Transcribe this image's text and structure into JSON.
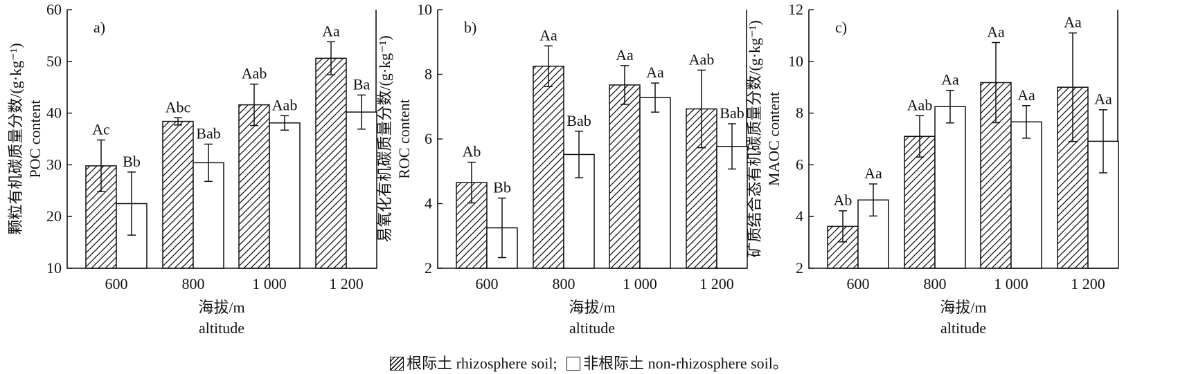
{
  "chart_data": [
    {
      "type": "bar",
      "panel_label": "a)",
      "ylabel_cn": "颗粒有机碳质量分数/(g·kg⁻¹)",
      "ylabel_en": "POC content",
      "xlabel_cn": "海拔/m",
      "xlabel_en": "altitude",
      "categories": [
        "600",
        "800",
        "1 000",
        "1 200"
      ],
      "ylim": [
        10,
        60
      ],
      "yticks": [
        "10",
        "20",
        "30",
        "40",
        "50",
        "60"
      ],
      "series": [
        {
          "name": "根际土 rhizosphere soil",
          "values": [
            29.8,
            38.4,
            41.6,
            50.6
          ],
          "errors": [
            5.0,
            0.7,
            4.0,
            3.2
          ],
          "labels": [
            "Ac",
            "Abc",
            "Aab",
            "Aa"
          ]
        },
        {
          "name": "非根际土 non-rhizosphere soil",
          "values": [
            22.5,
            30.4,
            38.1,
            40.2
          ],
          "errors": [
            6.1,
            3.6,
            1.4,
            3.3
          ],
          "labels": [
            "Bb",
            "Bab",
            "Aab",
            "Ba"
          ]
        }
      ]
    },
    {
      "type": "bar",
      "panel_label": "b)",
      "ylabel_cn": "易氧化有机碳质量分数/(g·kg⁻¹)",
      "ylabel_en": "ROC content",
      "xlabel_cn": "海拔/m",
      "xlabel_en": "altitude",
      "categories": [
        "600",
        "800",
        "1 000",
        "1 200"
      ],
      "ylim": [
        2,
        10
      ],
      "yticks": [
        "2",
        "4",
        "6",
        "8",
        "10"
      ],
      "series": [
        {
          "name": "根际土 rhizosphere soil",
          "values": [
            4.65,
            8.25,
            7.67,
            6.93
          ],
          "errors": [
            0.63,
            0.63,
            0.6,
            1.2
          ],
          "labels": [
            "Ab",
            "Aa",
            "Aa",
            "Aab"
          ]
        },
        {
          "name": "非根际土 non-rhizosphere soil",
          "values": [
            3.25,
            5.52,
            7.28,
            5.77
          ],
          "errors": [
            0.92,
            0.72,
            0.45,
            0.7
          ],
          "labels": [
            "Bb",
            "Bab",
            "Aa",
            "Bab"
          ]
        }
      ]
    },
    {
      "type": "bar",
      "panel_label": "c)",
      "ylabel_cn": "矿质结合态有机碳质量分数/(g·kg⁻¹)",
      "ylabel_en": "MAOC content",
      "xlabel_cn": "海拔/m",
      "xlabel_en": "altitude",
      "categories": [
        "600",
        "800",
        "1 000",
        "1 200"
      ],
      "ylim": [
        2,
        12
      ],
      "yticks": [
        "2",
        "4",
        "6",
        "8",
        "10",
        "12"
      ],
      "series": [
        {
          "name": "根际土 rhizosphere soil",
          "values": [
            3.62,
            7.1,
            9.18,
            9.0
          ],
          "errors": [
            0.6,
            0.8,
            1.55,
            2.1
          ],
          "labels": [
            "Ab",
            "Aab",
            "Aa",
            "Aa"
          ]
        },
        {
          "name": "非根际土 non-rhizosphere soil",
          "values": [
            4.64,
            8.25,
            7.66,
            6.91
          ],
          "errors": [
            0.62,
            0.63,
            0.63,
            1.22
          ],
          "labels": [
            "Aa",
            "Aa",
            "Aa",
            "Aa"
          ]
        }
      ]
    }
  ],
  "legend": {
    "rhizosphere": "根际土 rhizosphere soil;",
    "non_rhizosphere": "非根际土 non-rhizosphere soil。"
  }
}
